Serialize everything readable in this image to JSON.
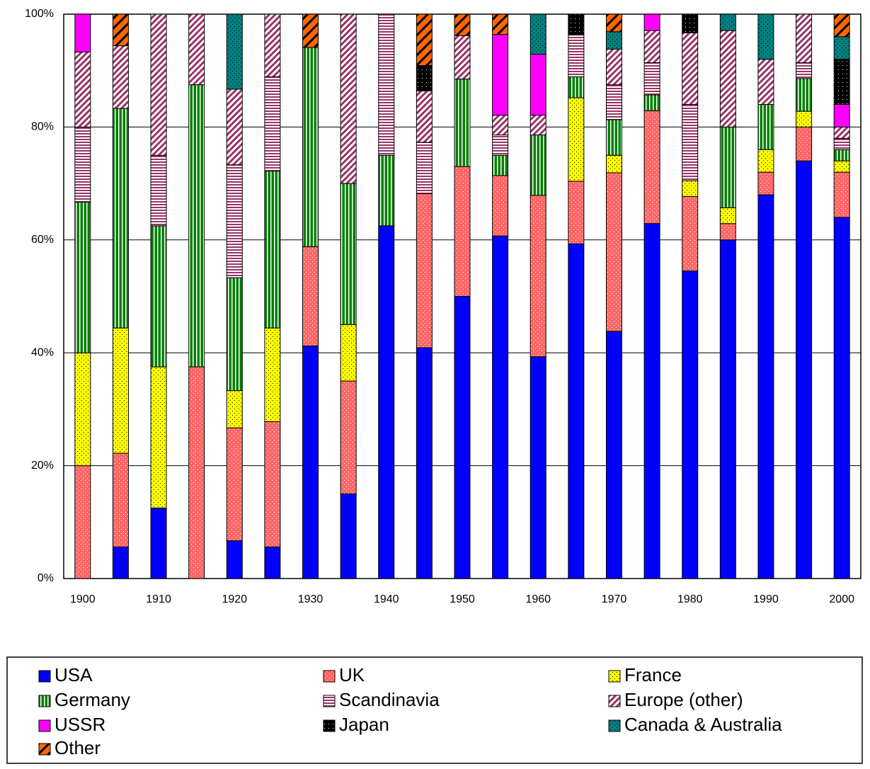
{
  "chart_data": {
    "type": "stacked-bar-100",
    "categories": [
      "1900",
      null,
      "1910",
      null,
      "1920",
      null,
      "1930",
      null,
      "1940",
      null,
      "1950",
      null,
      "1960",
      null,
      "1970",
      null,
      "1980",
      null,
      "1990",
      null,
      "2000"
    ],
    "series": [
      {
        "name": "USA",
        "color": "#0000ff",
        "pattern": "solid",
        "values": [
          0,
          5.6,
          12.5,
          0,
          6.7,
          5.6,
          41.2,
          15,
          62.5,
          40.9,
          50,
          60.7,
          39.3,
          59.3,
          43.8,
          62.9,
          54.5,
          60,
          68,
          74,
          64
        ]
      },
      {
        "name": "UK",
        "color": "#ff6666",
        "pattern": "fine-dots",
        "values": [
          20,
          16.6,
          0,
          37.5,
          20,
          22.2,
          17.6,
          20,
          0,
          27.3,
          23,
          10.7,
          28.6,
          11.1,
          28.1,
          20,
          13.2,
          2.9,
          4,
          6,
          8
        ]
      },
      {
        "name": "France",
        "color": "#ffff00",
        "pattern": "dots",
        "values": [
          20,
          22.2,
          25,
          0,
          6.6,
          16.6,
          0,
          10,
          0,
          0,
          0,
          0,
          0,
          14.8,
          3.1,
          0,
          2.8,
          2.8,
          4,
          2.8,
          2
        ]
      },
      {
        "name": "Germany",
        "color": "#008000",
        "pattern": "vertical-stripes",
        "values": [
          26.7,
          38.9,
          25,
          50,
          20,
          27.8,
          35.3,
          25,
          12.5,
          0,
          15.5,
          3.6,
          10.7,
          3.7,
          6.3,
          2.8,
          0,
          14.3,
          8,
          5.8,
          2
        ]
      },
      {
        "name": "Scandinavia",
        "color": "#993366",
        "pattern": "horizontal-stripes",
        "values": [
          13.3,
          0,
          12.5,
          0,
          20,
          16.7,
          0,
          0,
          25,
          9.1,
          0,
          3.6,
          0,
          7.4,
          6.2,
          5.7,
          13.5,
          0,
          0,
          2.8,
          2
        ]
      },
      {
        "name": "Europe (other)",
        "color": "#993366",
        "pattern": "diagonal-stripes",
        "values": [
          13.3,
          11.1,
          25,
          12.5,
          13.4,
          11.1,
          0,
          30,
          0,
          9.1,
          7.7,
          3.5,
          3.5,
          0,
          6.3,
          5.7,
          12.7,
          17.1,
          8,
          8.6,
          2
        ]
      },
      {
        "name": "USSR",
        "color": "#ff00ff",
        "pattern": "solid",
        "values": [
          6.7,
          0,
          0,
          0,
          0,
          0,
          0,
          0,
          0,
          0,
          0,
          14.3,
          10.8,
          0,
          0,
          2.9,
          0,
          0,
          0,
          0,
          4
        ]
      },
      {
        "name": "Japan",
        "color": "#000000",
        "pattern": "light-dots",
        "values": [
          0,
          0,
          0,
          0,
          0,
          0,
          0,
          0,
          0,
          4.5,
          0,
          0,
          0,
          3.7,
          0,
          0,
          3.3,
          0,
          0,
          0,
          8
        ]
      },
      {
        "name": "Canada & Australia",
        "color": "#008080",
        "pattern": "dots",
        "values": [
          0,
          0,
          0,
          0,
          13.3,
          0,
          0,
          0,
          0,
          0,
          0,
          0,
          7.1,
          0,
          3.1,
          0,
          0,
          2.9,
          8,
          0,
          4
        ]
      },
      {
        "name": "Other",
        "color": "#ff6600",
        "pattern": "wide-diagonal",
        "values": [
          0,
          5.6,
          0,
          0,
          0,
          0,
          5.9,
          0,
          0,
          9.1,
          3.8,
          3.6,
          0,
          0,
          3.1,
          0,
          0,
          0,
          0,
          0,
          4
        ]
      }
    ],
    "ylim": [
      0,
      100
    ],
    "yticks": [
      {
        "value": 0,
        "label": "0%"
      },
      {
        "value": 20,
        "label": "20%"
      },
      {
        "value": 40,
        "label": "40%"
      },
      {
        "value": 60,
        "label": "60%"
      },
      {
        "value": 80,
        "label": "80%"
      },
      {
        "value": 100,
        "label": "100%"
      }
    ],
    "grid": true,
    "legend": "bottom"
  }
}
